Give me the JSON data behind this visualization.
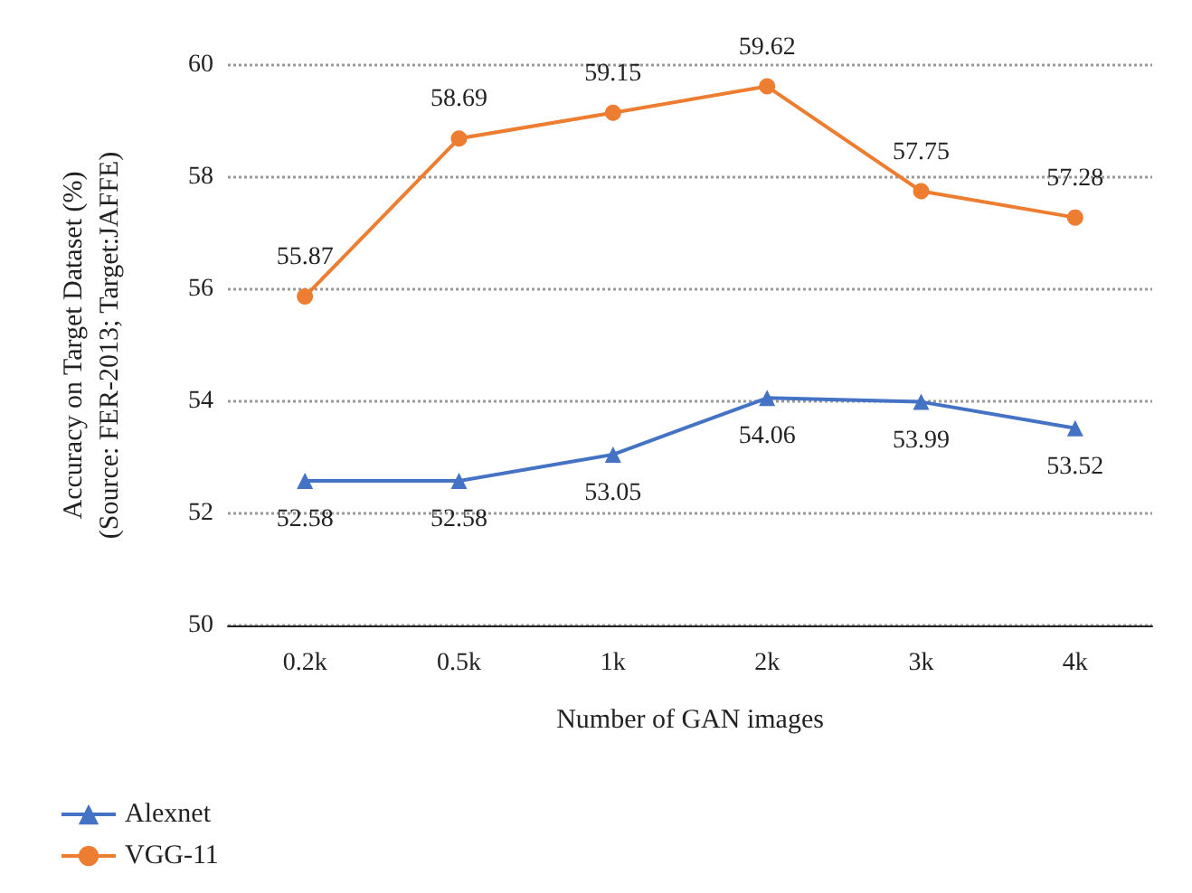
{
  "chart_data": {
    "type": "line",
    "xlabel": "Number of GAN images",
    "ylabel": "Accuracy on Target Dataset (%)\n(Source: FER-2013; Target:JAFFE)",
    "categories": [
      "0.2k",
      "0.5k",
      "1k",
      "2k",
      "3k",
      "4k"
    ],
    "series": [
      {
        "name": "Alexnet",
        "color": "#4472c4",
        "marker": "triangle",
        "values": [
          52.58,
          52.58,
          53.05,
          54.06,
          53.99,
          53.52
        ]
      },
      {
        "name": "VGG-11",
        "color": "#ed7d31",
        "marker": "circle",
        "values": [
          55.87,
          58.69,
          59.15,
          59.62,
          57.75,
          57.28
        ]
      }
    ],
    "ylim": [
      50,
      60
    ],
    "yticks": [
      50,
      52,
      54,
      56,
      58,
      60
    ],
    "grid": "y",
    "legend": "bottom left",
    "data_labels": true,
    "line_style": "solid"
  }
}
